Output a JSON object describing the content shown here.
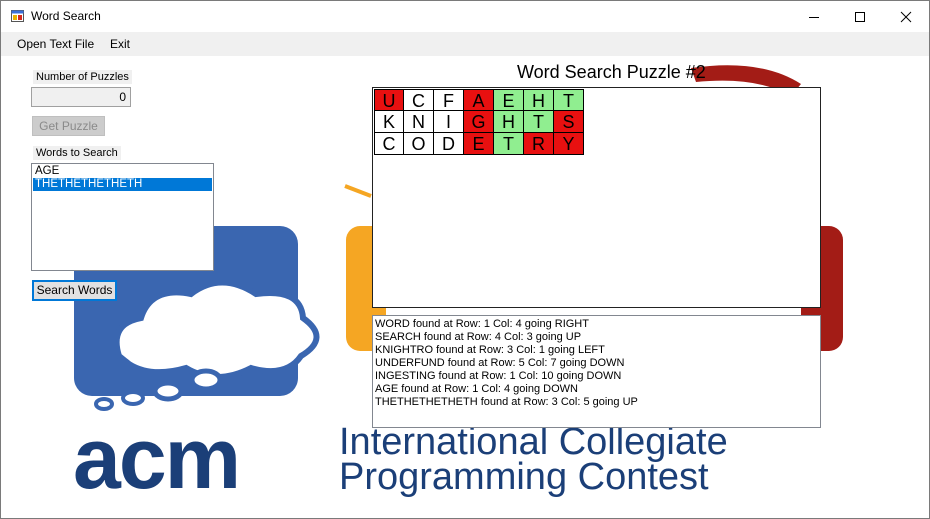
{
  "window": {
    "title": "Word Search",
    "icon": "app-window-icon",
    "controls": [
      "minimize-icon",
      "maximize-icon",
      "close-icon"
    ]
  },
  "menu": {
    "open_text_file": "Open Text File",
    "exit": "Exit"
  },
  "left_panel": {
    "number_of_puzzles_label": "Number of Puzzles",
    "number_of_puzzles_value": "0",
    "get_puzzle_button": "Get Puzzle",
    "words_to_search_label": "Words to Search",
    "words": [
      {
        "text": "AGE",
        "selected": false
      },
      {
        "text": "THETHETHETHETH",
        "selected": true
      }
    ],
    "search_words_button": "Search Words"
  },
  "puzzle": {
    "title": "Word Search Puzzle #2",
    "rows": [
      [
        {
          "ch": "U",
          "color": "#e81010"
        },
        {
          "ch": "C",
          "color": "#ffffff"
        },
        {
          "ch": "F",
          "color": "#ffffff"
        },
        {
          "ch": "A",
          "color": "#e81010"
        },
        {
          "ch": "E",
          "color": "#90ee90"
        },
        {
          "ch": "H",
          "color": "#90ee90"
        },
        {
          "ch": "T",
          "color": "#90ee90"
        }
      ],
      [
        {
          "ch": "K",
          "color": "#ffffff"
        },
        {
          "ch": "N",
          "color": "#ffffff"
        },
        {
          "ch": "I",
          "color": "#ffffff"
        },
        {
          "ch": "G",
          "color": "#e81010"
        },
        {
          "ch": "H",
          "color": "#90ee90"
        },
        {
          "ch": "T",
          "color": "#90ee90"
        },
        {
          "ch": "S",
          "color": "#e81010"
        }
      ],
      [
        {
          "ch": "C",
          "color": "#ffffff"
        },
        {
          "ch": "O",
          "color": "#ffffff"
        },
        {
          "ch": "D",
          "color": "#ffffff"
        },
        {
          "ch": "E",
          "color": "#e81010"
        },
        {
          "ch": "T",
          "color": "#90ee90"
        },
        {
          "ch": "R",
          "color": "#e81010"
        },
        {
          "ch": "Y",
          "color": "#e81010"
        }
      ]
    ]
  },
  "results": [
    "WORD found at Row: 1 Col: 4 going RIGHT",
    "SEARCH found at Row: 4 Col: 3 going UP",
    "KNIGHTRO found at Row: 3 Col: 1 going LEFT",
    "UNDERFUND found at Row: 5 Col: 7 going DOWN",
    "INGESTING found at Row: 1 Col: 10 going DOWN",
    "AGE found at Row: 1 Col: 4 going DOWN",
    "THETHETHETHETH found at Row: 3 Col: 5 going UP"
  ],
  "background": {
    "logo_text": "acm",
    "line1": "International Collegiate",
    "line2": "Programming Contest",
    "colors": {
      "blue": "#3a66b0",
      "navy": "#1b3f78",
      "orange": "#f5a623",
      "dark_red": "#a31c16"
    }
  }
}
